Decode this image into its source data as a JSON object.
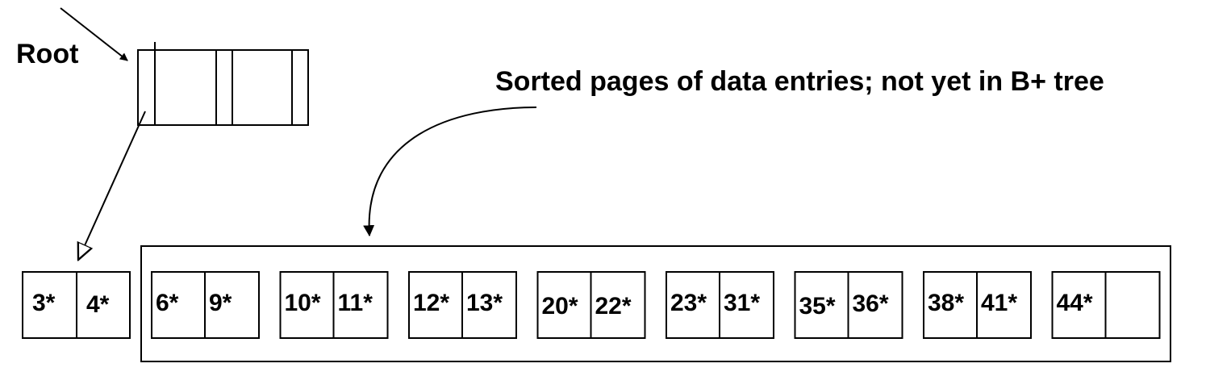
{
  "root_label": "Root",
  "annotation": "Sorted pages of data entries; not yet in B+ tree",
  "first_page": [
    "3*",
    "4*"
  ],
  "pages": [
    [
      "6*",
      "9*"
    ],
    [
      "10*",
      "11*"
    ],
    [
      "12*",
      "13*"
    ],
    [
      "20*",
      "22*"
    ],
    [
      "23*",
      "31*"
    ],
    [
      "35*",
      "36*"
    ],
    [
      "38*",
      "41*"
    ],
    [
      "44*",
      ""
    ]
  ]
}
